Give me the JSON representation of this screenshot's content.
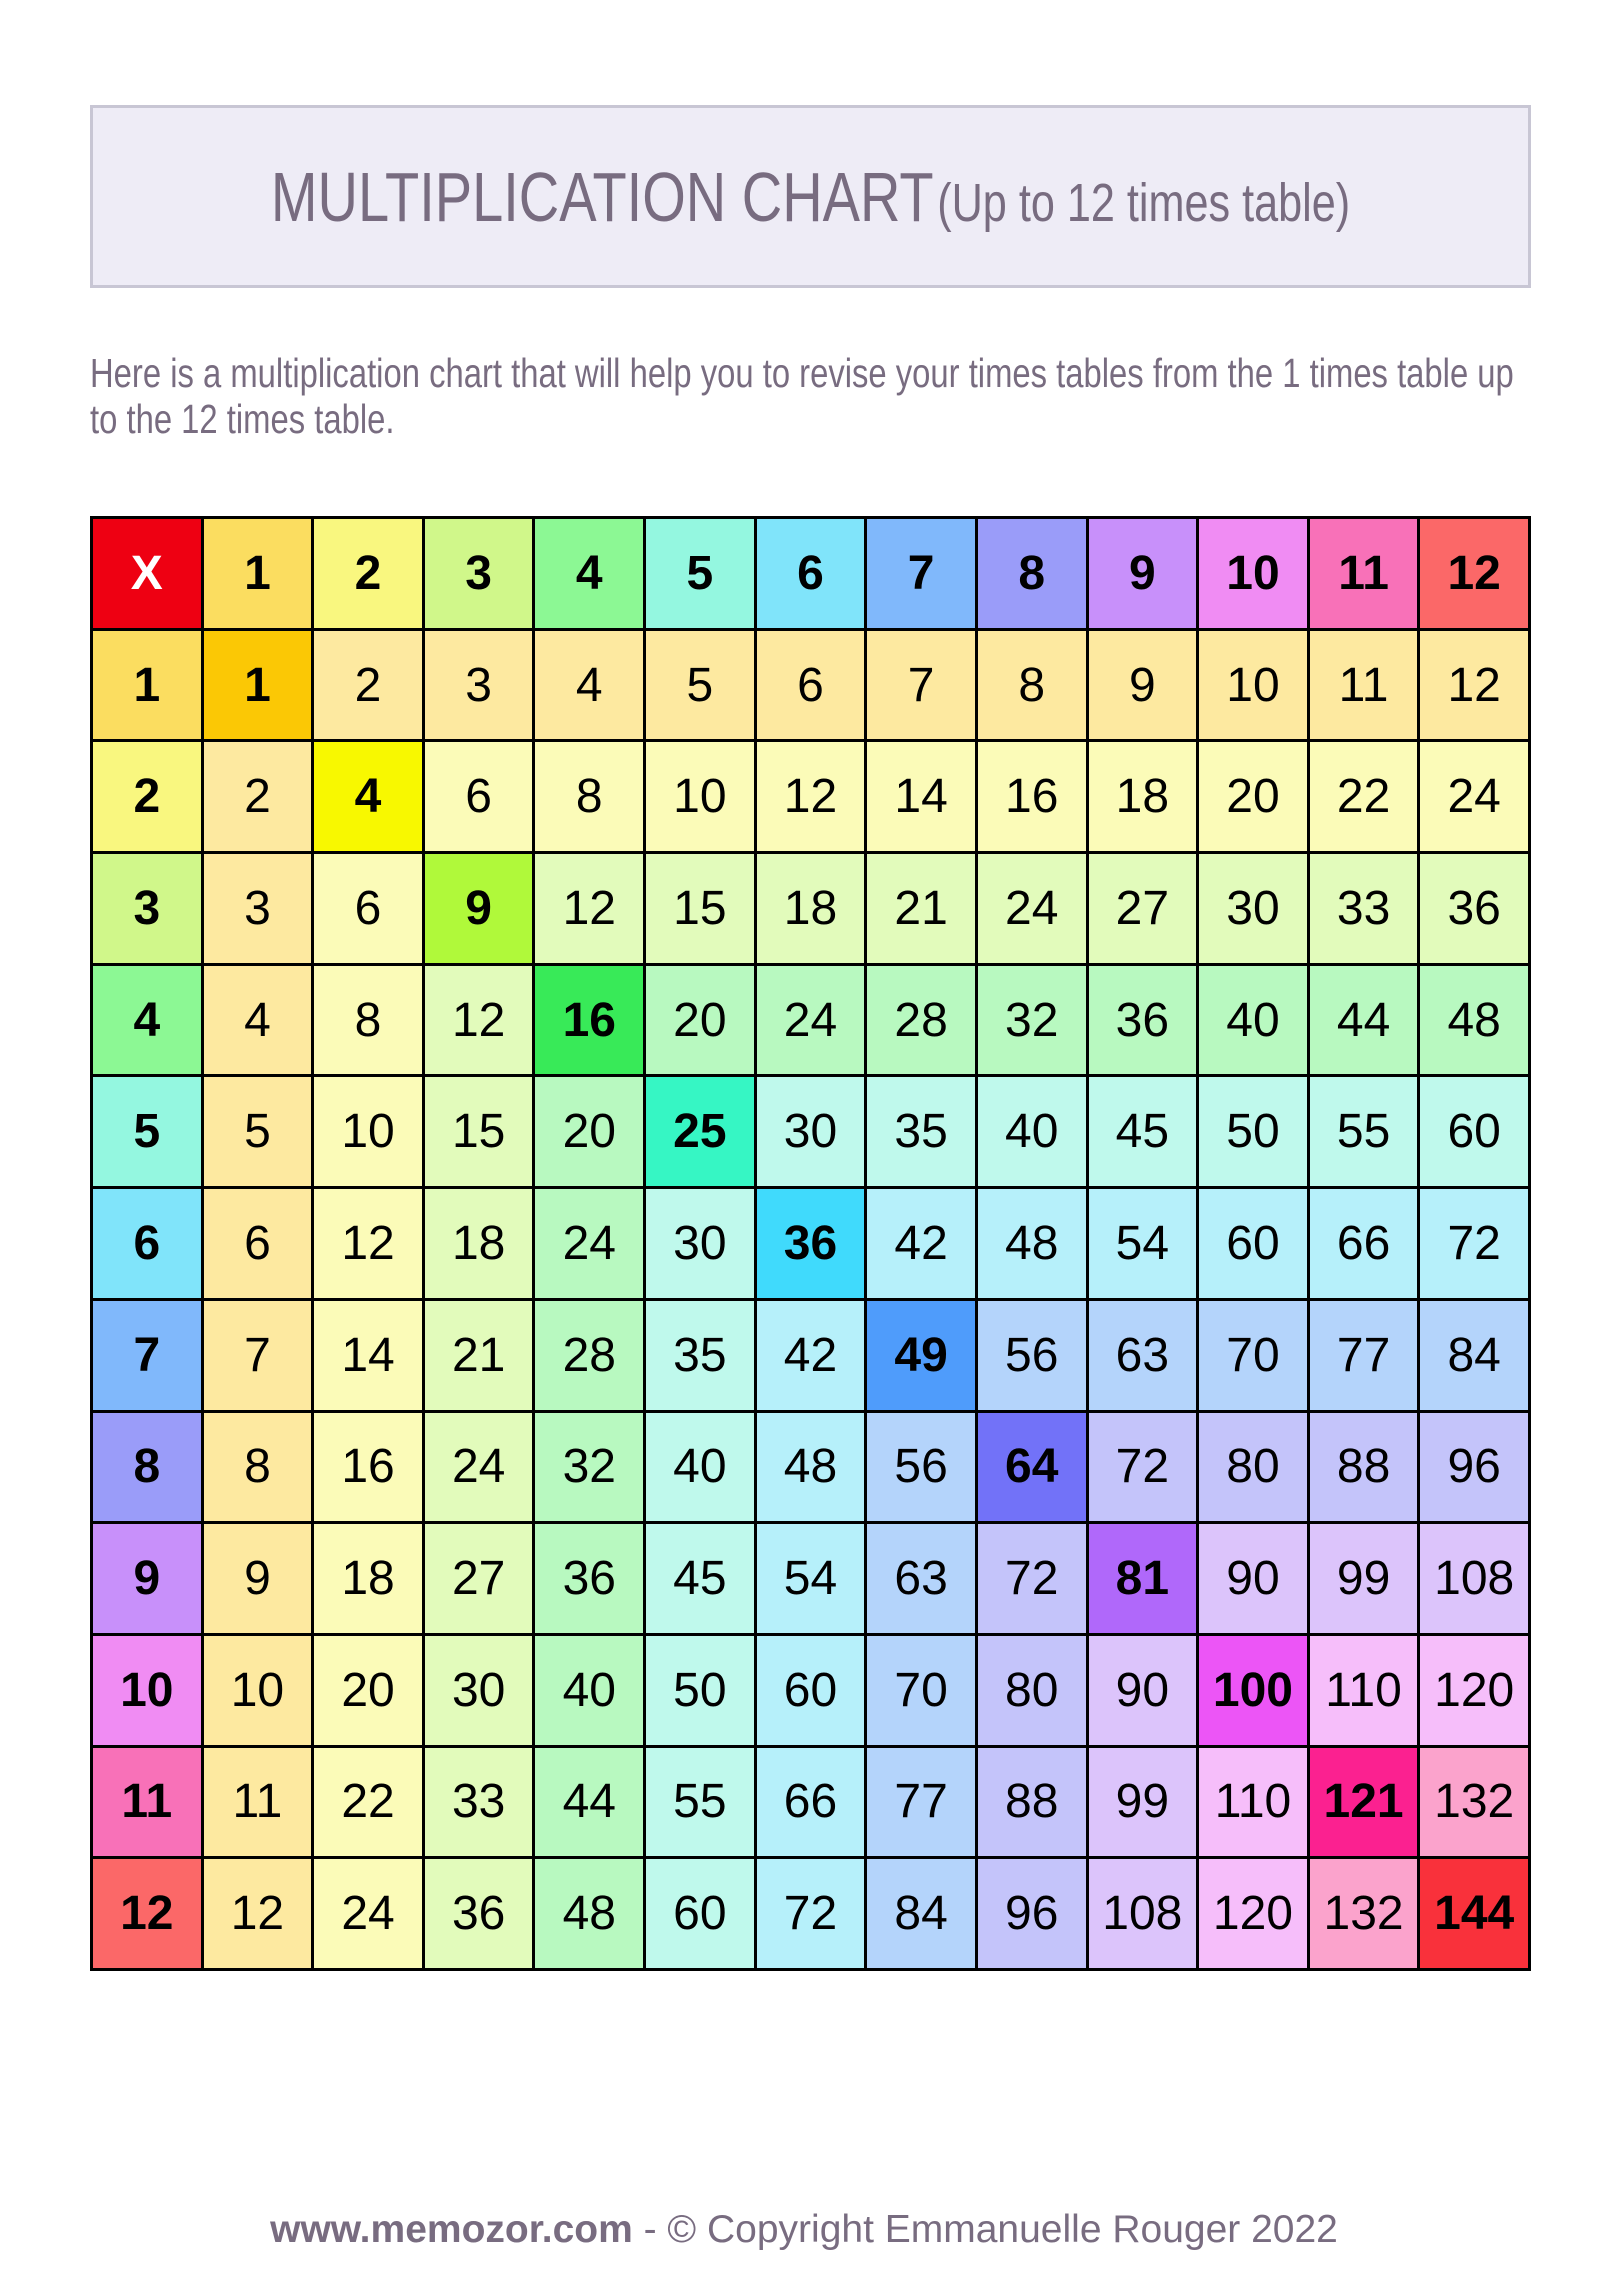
{
  "header": {
    "title": "MULTIPLICATION CHART",
    "subtitle": "(Up to 12 times table)"
  },
  "description": "Here is a multiplication chart that will help you to revise your times tables from the 1 times table up to the 12 times table.",
  "table": {
    "corner": "x",
    "headers": [
      "1",
      "2",
      "3",
      "4",
      "5",
      "6",
      "7",
      "8",
      "9",
      "10",
      "11",
      "12"
    ],
    "rows": [
      [
        1,
        2,
        3,
        4,
        5,
        6,
        7,
        8,
        9,
        10,
        11,
        12
      ],
      [
        2,
        4,
        6,
        8,
        10,
        12,
        14,
        16,
        18,
        20,
        22,
        24
      ],
      [
        3,
        6,
        9,
        12,
        15,
        18,
        21,
        24,
        27,
        30,
        33,
        36
      ],
      [
        4,
        8,
        12,
        16,
        20,
        24,
        28,
        32,
        36,
        40,
        44,
        48
      ],
      [
        5,
        10,
        15,
        20,
        25,
        30,
        35,
        40,
        45,
        50,
        55,
        60
      ],
      [
        6,
        12,
        18,
        24,
        30,
        36,
        42,
        48,
        54,
        60,
        66,
        72
      ],
      [
        7,
        14,
        21,
        28,
        35,
        42,
        49,
        56,
        63,
        70,
        77,
        84
      ],
      [
        8,
        16,
        24,
        32,
        40,
        48,
        56,
        64,
        72,
        80,
        88,
        96
      ],
      [
        9,
        18,
        27,
        36,
        45,
        54,
        63,
        72,
        81,
        90,
        99,
        108
      ],
      [
        10,
        20,
        30,
        40,
        50,
        60,
        70,
        80,
        90,
        100,
        110,
        120
      ],
      [
        11,
        22,
        33,
        44,
        55,
        66,
        77,
        88,
        99,
        110,
        121,
        132
      ],
      [
        12,
        24,
        36,
        48,
        60,
        72,
        84,
        96,
        108,
        120,
        132,
        144
      ]
    ]
  },
  "colors": {
    "corner": "#ee0012",
    "header": [
      "#fbdd60",
      "#f9f77f",
      "#d0f78a",
      "#8cf894",
      "#94f7e0",
      "#80e4fa",
      "#80b8fb",
      "#9a9cf9",
      "#c890fa",
      "#f08cf3",
      "#f871b8",
      "#fb6868"
    ],
    "light": [
      "#fde9a0",
      "#fbfbb8",
      "#e2fbbb",
      "#b8f9c0",
      "#bff9ec",
      "#b6f0fa",
      "#b4d4fb",
      "#c4c4fa",
      "#dcc4fb",
      "#f6befa",
      "#fba3cc",
      "#fb9a9a"
    ],
    "diagonal": [
      "#fbc805",
      "#f8f800",
      "#b0f93a",
      "#38ea58",
      "#36f6c4",
      "#40dafc",
      "#4f9cfb",
      "#7272f8",
      "#b068fa",
      "#ec55f6",
      "#fb2190",
      "#f9313b"
    ],
    "text": "#786c80"
  },
  "footer": {
    "site": "www.memozor.com",
    "copyright": " - © Copyright Emmanuelle Rouger 2022"
  }
}
